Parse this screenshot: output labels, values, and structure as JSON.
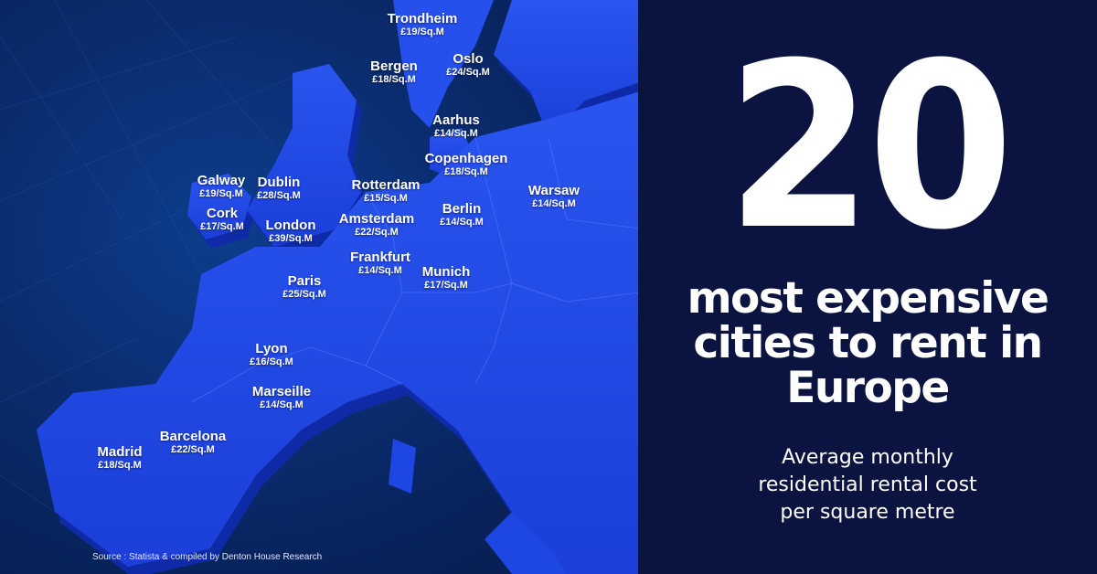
{
  "title": {
    "number": "20",
    "headline_lines": [
      "most expensive",
      "cities to rent in",
      "Europe"
    ],
    "subhead_lines": [
      "Average monthly",
      "residential rental cost",
      "per square metre"
    ]
  },
  "source": "Source : Statista & compiled by Denton House Research",
  "colors": {
    "land": "#1f47e8",
    "land_edge": "#0f2aa6",
    "sea": "#0a2b6d",
    "panel": "#0b1440",
    "text": "#ffffff"
  },
  "cities": [
    {
      "key": "trondheim",
      "name": "Trondheim",
      "price": "£19/Sq.M"
    },
    {
      "key": "oslo",
      "name": "Oslo",
      "price": "£24/Sq.M"
    },
    {
      "key": "bergen",
      "name": "Bergen",
      "price": "£18/Sq.M"
    },
    {
      "key": "aarhus",
      "name": "Aarhus",
      "price": "£14/Sq.M"
    },
    {
      "key": "copenhagen",
      "name": "Copenhagen",
      "price": "£18/Sq.M"
    },
    {
      "key": "galway",
      "name": "Galway",
      "price": "£19/Sq.M"
    },
    {
      "key": "dublin",
      "name": "Dublin",
      "price": "£28/Sq.M"
    },
    {
      "key": "rotterdam",
      "name": "Rotterdam",
      "price": "£15/Sq.M"
    },
    {
      "key": "warsaw",
      "name": "Warsaw",
      "price": "£14/Sq.M"
    },
    {
      "key": "cork",
      "name": "Cork",
      "price": "£17/Sq.M"
    },
    {
      "key": "berlin",
      "name": "Berlin",
      "price": "£14/Sq.M"
    },
    {
      "key": "london",
      "name": "London",
      "price": "£39/Sq.M"
    },
    {
      "key": "amsterdam",
      "name": "Amsterdam",
      "price": "£22/Sq.M"
    },
    {
      "key": "frankfurt",
      "name": "Frankfurt",
      "price": "£14/Sq.M"
    },
    {
      "key": "munich",
      "name": "Munich",
      "price": "£17/Sq.M"
    },
    {
      "key": "paris",
      "name": "Paris",
      "price": "£25/Sq.M"
    },
    {
      "key": "lyon",
      "name": "Lyon",
      "price": "£16/Sq.M"
    },
    {
      "key": "marseille",
      "name": "Marseille",
      "price": "£14/Sq.M"
    },
    {
      "key": "barcelona",
      "name": "Barcelona",
      "price": "£22/Sq.M"
    },
    {
      "key": "madrid",
      "name": "Madrid",
      "price": "£18/Sq.M"
    }
  ]
}
